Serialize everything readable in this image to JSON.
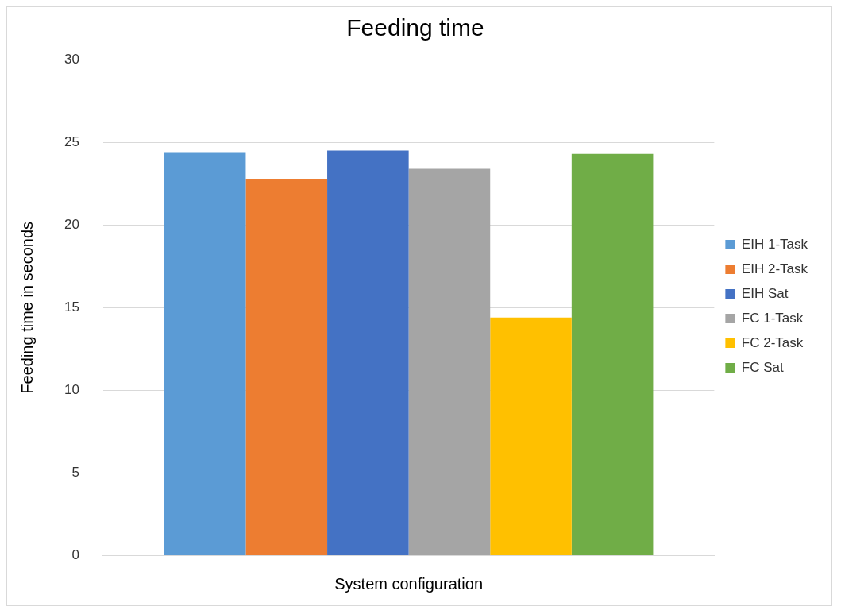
{
  "chart_data": {
    "type": "bar",
    "title": "Feeding time",
    "xlabel": "System configuration",
    "ylabel": "Feeding time in seconds",
    "categories": [
      null
    ],
    "series": [
      {
        "name": "EIH 1-Task",
        "color": "#5b9bd5",
        "values": [
          24.4
        ]
      },
      {
        "name": "EIH 2-Task",
        "color": "#ed7d31",
        "values": [
          22.8
        ]
      },
      {
        "name": "EIH Sat",
        "color": "#4472c4",
        "values": [
          24.5
        ]
      },
      {
        "name": "FC 1-Task",
        "color": "#a5a5a5",
        "values": [
          23.4
        ]
      },
      {
        "name": "FC 2-Task",
        "color": "#ffc000",
        "values": [
          14.4
        ]
      },
      {
        "name": "FC Sat",
        "color": "#70ad47",
        "values": [
          24.3
        ]
      }
    ],
    "ylim": [
      0,
      30
    ],
    "yticks": [
      0,
      5,
      10,
      15,
      20,
      25,
      30
    ],
    "grid": "y",
    "legend": "right"
  }
}
